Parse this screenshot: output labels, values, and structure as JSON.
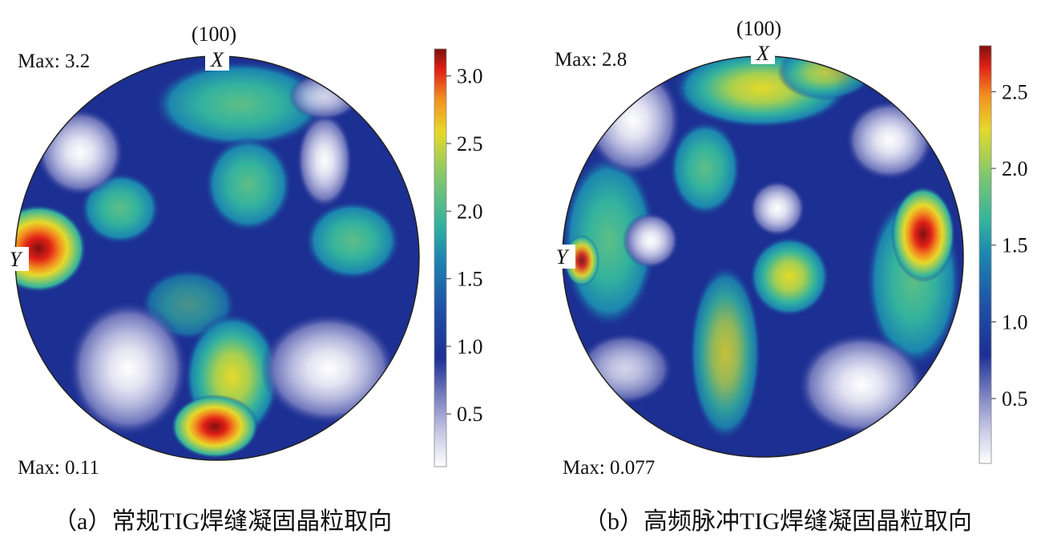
{
  "chart_data": [
    {
      "type": "heatmap",
      "subtype": "pole-figure",
      "panel_label": "（a）常规TIG焊缝凝固晶粒取向",
      "plane_label": "(100)",
      "axis_x_label": "X",
      "axis_y_label": "Y",
      "max_text": "Max: 3.2",
      "min_text": "Max: 0.11",
      "colorbar": {
        "range": [
          0.11,
          3.2
        ],
        "ticks": [
          0.5,
          1.0,
          1.5,
          2.0,
          2.5,
          3.0
        ],
        "tick_labels": [
          "0.5",
          "1.0",
          "1.5",
          "2.0",
          "2.5",
          "3.0"
        ]
      }
    },
    {
      "type": "heatmap",
      "subtype": "pole-figure",
      "panel_label": "（b）高频脉冲TIG焊缝凝固晶粒取向",
      "plane_label": "(100)",
      "axis_x_label": "X",
      "axis_y_label": "Y",
      "max_text": "Max: 2.8",
      "min_text": "Max: 0.077",
      "colorbar": {
        "range": [
          0.077,
          2.8
        ],
        "ticks": [
          0.5,
          1.0,
          1.5,
          2.0,
          2.5
        ],
        "tick_labels": [
          "0.5",
          "1.0",
          "1.5",
          "2.0",
          "2.5"
        ]
      }
    }
  ],
  "colors": {
    "scale": [
      "#ffffff",
      "#c9c9e6",
      "#7f86c2",
      "#1d2f94",
      "#1f52a6",
      "#1c86b0",
      "#33b29e",
      "#87c96a",
      "#e6d92a",
      "#f39020",
      "#e02017",
      "#7e1010"
    ],
    "background": "#1c2f92"
  }
}
